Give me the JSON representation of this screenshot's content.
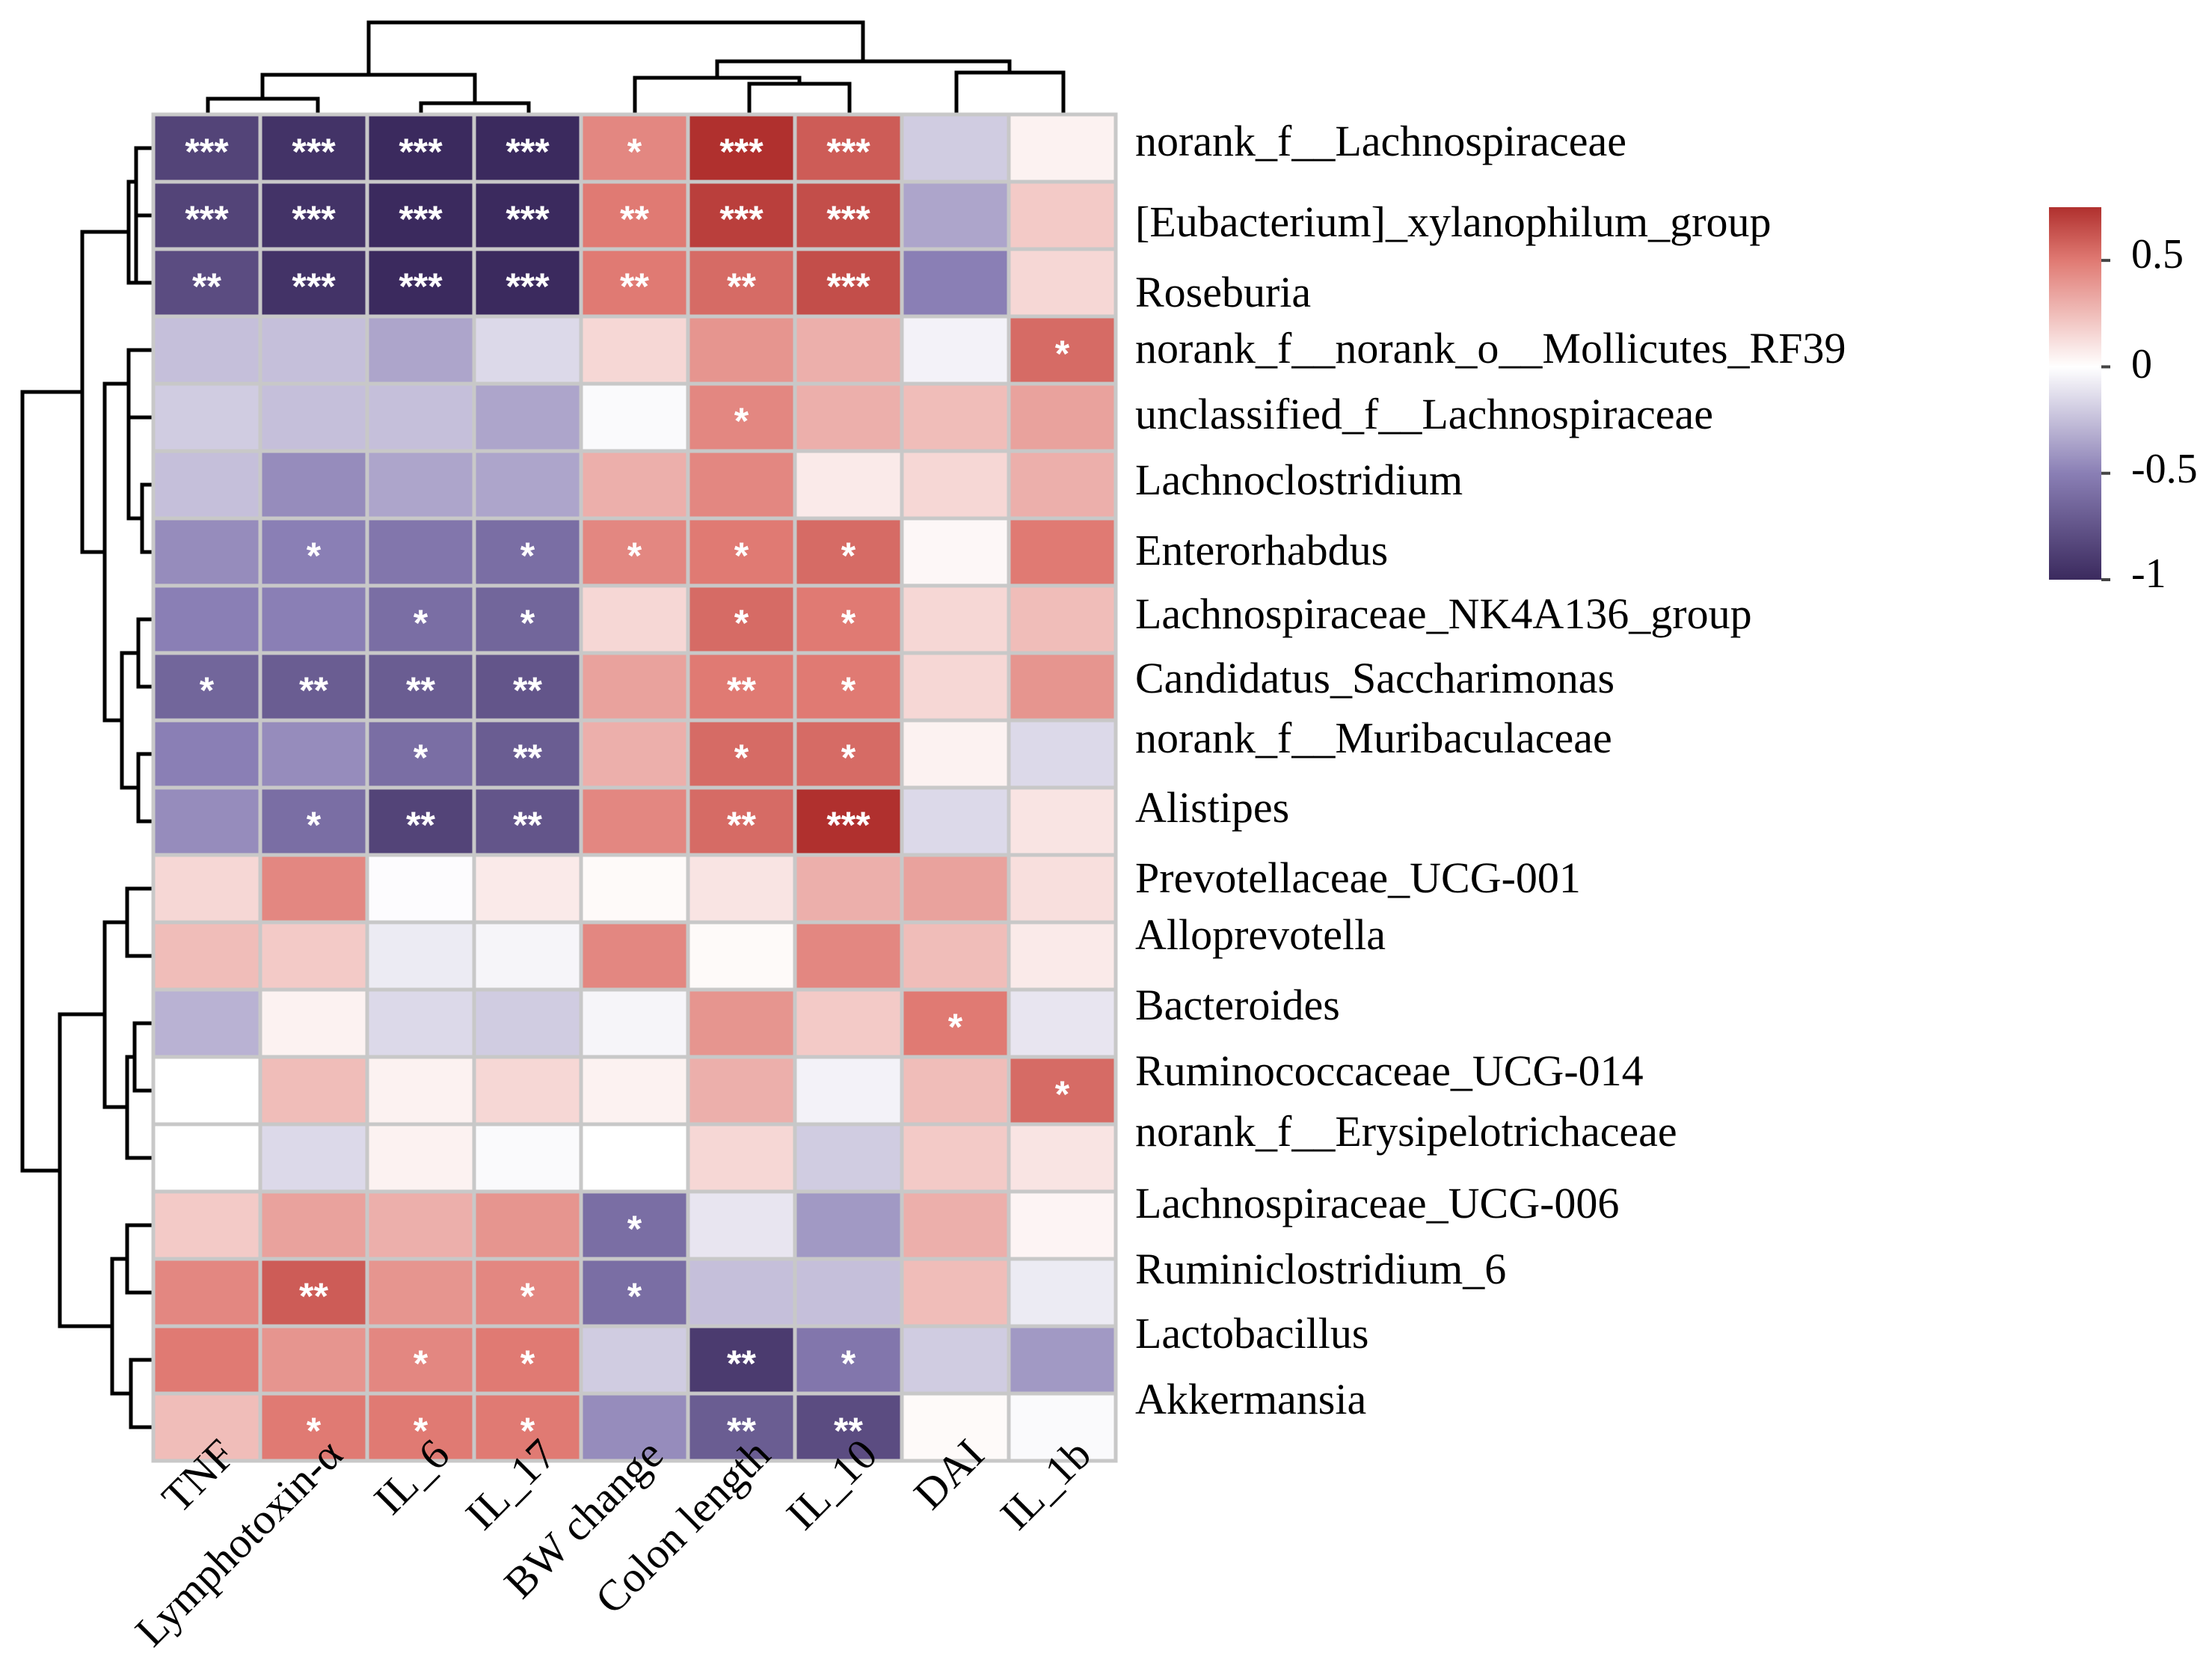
{
  "chart_data": {
    "type": "heatmap",
    "title": "",
    "columns": [
      "TNF",
      "Lymphotoxin-α",
      "IL_6",
      "IL_17",
      "BW change",
      "Colon length",
      "IL_10",
      "DAI",
      "IL_1b"
    ],
    "rows": [
      "norank_f__Lachnospiraceae",
      "[Eubacterium]_xylanophilum_group",
      "Roseburia",
      "norank_f__norank_o__Mollicutes_RF39",
      "unclassified_f__Lachnospiraceae",
      "Lachnoclostridium",
      "Enterorhabdus",
      "Lachnospiraceae_NK4A136_group",
      "Candidatus_Saccharimonas",
      "norank_f__Muribaculaceae",
      "Alistipes",
      "Prevotellaceae_UCG-001",
      "Alloprevotella",
      "Bacteroides",
      "Ruminococcaceae_UCG-014",
      "norank_f__Erysipelotrichaceae",
      "Lachnospiraceae_UCG-006",
      "Ruminiclostridium_6",
      "Lactobacillus",
      "Akkermansia"
    ],
    "values": [
      [
        -0.85,
        -0.95,
        -1.0,
        -1.0,
        0.45,
        0.75,
        0.6,
        -0.2,
        0.05
      ],
      [
        -0.85,
        -0.95,
        -1.0,
        -1.0,
        0.5,
        0.7,
        0.65,
        -0.35,
        0.2
      ],
      [
        -0.8,
        -0.95,
        -1.0,
        -1.0,
        0.5,
        0.55,
        0.65,
        -0.5,
        0.15
      ],
      [
        -0.25,
        -0.25,
        -0.35,
        -0.15,
        0.15,
        0.4,
        0.3,
        -0.05,
        0.55
      ],
      [
        -0.2,
        -0.25,
        -0.25,
        -0.35,
        -0.02,
        0.45,
        0.3,
        0.25,
        0.35
      ],
      [
        -0.25,
        -0.45,
        -0.35,
        -0.35,
        0.3,
        0.45,
        0.08,
        0.15,
        0.3
      ],
      [
        -0.45,
        -0.5,
        -0.55,
        -0.6,
        0.45,
        0.5,
        0.55,
        0.03,
        0.5
      ],
      [
        -0.5,
        -0.5,
        -0.6,
        -0.65,
        0.15,
        0.55,
        0.5,
        0.15,
        0.25
      ],
      [
        -0.65,
        -0.7,
        -0.7,
        -0.75,
        0.35,
        0.5,
        0.5,
        0.15,
        0.4
      ],
      [
        -0.5,
        -0.45,
        -0.6,
        -0.7,
        0.3,
        0.55,
        0.55,
        0.05,
        -0.15
      ],
      [
        -0.45,
        -0.6,
        -0.85,
        -0.75,
        0.45,
        0.55,
        0.75,
        -0.15,
        0.1
      ],
      [
        0.15,
        0.45,
        -0.01,
        0.08,
        0.02,
        0.1,
        0.3,
        0.35,
        0.12
      ],
      [
        0.25,
        0.2,
        -0.08,
        -0.04,
        0.45,
        0.02,
        0.45,
        0.25,
        0.08
      ],
      [
        -0.3,
        0.05,
        -0.15,
        -0.2,
        -0.04,
        0.4,
        0.2,
        0.5,
        -0.1
      ],
      [
        0.0,
        0.25,
        0.05,
        0.15,
        0.05,
        0.3,
        -0.05,
        0.25,
        0.55
      ],
      [
        0.0,
        -0.15,
        0.05,
        -0.02,
        0.0,
        0.15,
        -0.2,
        0.2,
        0.1
      ],
      [
        0.2,
        0.35,
        0.3,
        0.4,
        -0.6,
        -0.1,
        -0.4,
        0.3,
        0.04
      ],
      [
        0.45,
        0.6,
        0.4,
        0.45,
        -0.6,
        -0.25,
        -0.25,
        0.25,
        -0.08
      ],
      [
        0.5,
        0.4,
        0.45,
        0.5,
        -0.2,
        -0.9,
        -0.55,
        -0.2,
        -0.4
      ],
      [
        0.25,
        0.5,
        0.5,
        0.5,
        -0.45,
        -0.7,
        -0.8,
        0.02,
        -0.02
      ]
    ],
    "significance": [
      [
        "***",
        "***",
        "***",
        "***",
        "*",
        "***",
        "***",
        "",
        ""
      ],
      [
        "***",
        "***",
        "***",
        "***",
        "**",
        "***",
        "***",
        "",
        ""
      ],
      [
        "**",
        "***",
        "***",
        "***",
        "**",
        "**",
        "***",
        "",
        ""
      ],
      [
        "",
        "",
        "",
        "",
        "",
        "",
        "",
        "",
        "*"
      ],
      [
        "",
        "",
        "",
        "",
        "",
        "*",
        "",
        "",
        ""
      ],
      [
        "",
        "",
        "",
        "",
        "",
        "",
        "",
        "",
        ""
      ],
      [
        "",
        "*",
        "",
        "*",
        "*",
        "*",
        "*",
        "",
        ""
      ],
      [
        "",
        "",
        "*",
        "*",
        "",
        "*",
        "*",
        "",
        ""
      ],
      [
        "*",
        "**",
        "**",
        "**",
        "",
        "**",
        "*",
        "",
        ""
      ],
      [
        "",
        "",
        "*",
        "**",
        "",
        "*",
        "*",
        "",
        ""
      ],
      [
        "",
        "*",
        "**",
        "**",
        "",
        "**",
        "***",
        "",
        ""
      ],
      [
        "",
        "",
        "",
        "",
        "",
        "",
        "",
        "",
        ""
      ],
      [
        "",
        "",
        "",
        "",
        "",
        "",
        "",
        "",
        ""
      ],
      [
        "",
        "",
        "",
        "",
        "",
        "",
        "",
        "*",
        ""
      ],
      [
        "",
        "",
        "",
        "",
        "",
        "",
        "",
        "",
        "*"
      ],
      [
        "",
        "",
        "",
        "",
        "",
        "",
        "",
        "",
        ""
      ],
      [
        "",
        "",
        "",
        "",
        "*",
        "",
        "",
        "",
        ""
      ],
      [
        "",
        "**",
        "",
        "*",
        "*",
        "",
        "",
        "",
        ""
      ],
      [
        "",
        "",
        "*",
        "*",
        "",
        "**",
        "*",
        "",
        ""
      ],
      [
        "",
        "*",
        "*",
        "*",
        "",
        "**",
        "**",
        "",
        ""
      ]
    ],
    "colorbar": {
      "ticks": [
        0.5,
        0,
        -0.5,
        -1
      ],
      "tick_labels": [
        "0.5",
        "0",
        "-0.5",
        "-1"
      ],
      "range": [
        -1,
        0.75
      ],
      "colors": {
        "negative": "#3b2a5e",
        "mid": "#ffffff",
        "positive": "#b0302e"
      }
    },
    "grid_color": "#c8c8c8",
    "row_dendrogram": "left",
    "column_dendrogram": "top"
  }
}
